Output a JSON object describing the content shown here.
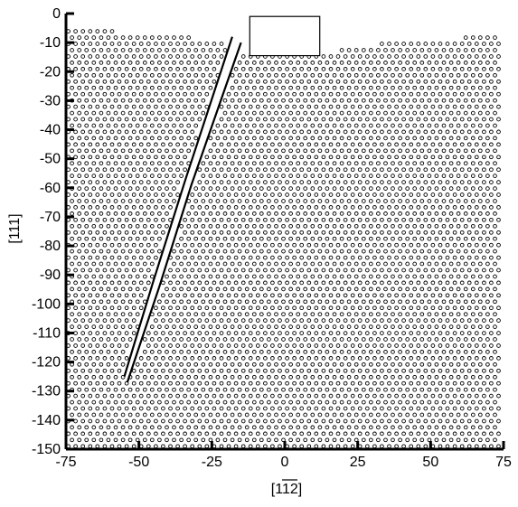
{
  "chart_data": {
    "type": "scatter",
    "title": "",
    "xlabel": "[112]",
    "xlabel_overline": "11",
    "ylabel": "[111]",
    "xlim": [
      -75,
      75
    ],
    "ylim": [
      -150,
      0
    ],
    "xticks": [
      -75,
      -50,
      -25,
      0,
      25,
      50,
      75
    ],
    "xtick_labels": [
      "-75",
      "-50",
      "-25",
      "0",
      "25",
      "50",
      "75"
    ],
    "yticks": [
      0,
      -10,
      -20,
      -30,
      -40,
      -50,
      -60,
      -70,
      -80,
      -90,
      -100,
      -110,
      -120,
      -130,
      -140,
      -150
    ],
    "ytick_labels": [
      "0",
      "-10",
      "-20",
      "-30",
      "-40",
      "-50",
      "-60",
      "-70",
      "-80",
      "-90",
      "-100",
      "-110",
      "-120",
      "-130",
      "-140",
      "-150"
    ],
    "grid": false,
    "legend": "none",
    "atoms": {
      "marker": "open-circle",
      "lattice_spacing": 2.5,
      "surface_profile": {
        "x": [
          -75,
          -60,
          -45,
          -30,
          -17,
          -12,
          12,
          20,
          35,
          50,
          65,
          75
        ],
        "y": [
          -5,
          -6,
          -7,
          -8.5,
          -10,
          -14.5,
          -14.5,
          -12,
          -10,
          -9,
          -8,
          -7
        ]
      }
    },
    "indenter": {
      "x": [
        -12,
        12
      ],
      "y": [
        -1,
        -14.5
      ]
    },
    "dislocation_loop": {
      "line1": {
        "x": [
          -18,
          -34,
          -45,
          -55
        ],
        "y": [
          -8,
          -57,
          -92,
          -125
        ]
      },
      "line2": {
        "x": [
          -15,
          -32,
          -43,
          -54
        ],
        "y": [
          -10,
          -59,
          -94,
          -127
        ]
      }
    }
  }
}
